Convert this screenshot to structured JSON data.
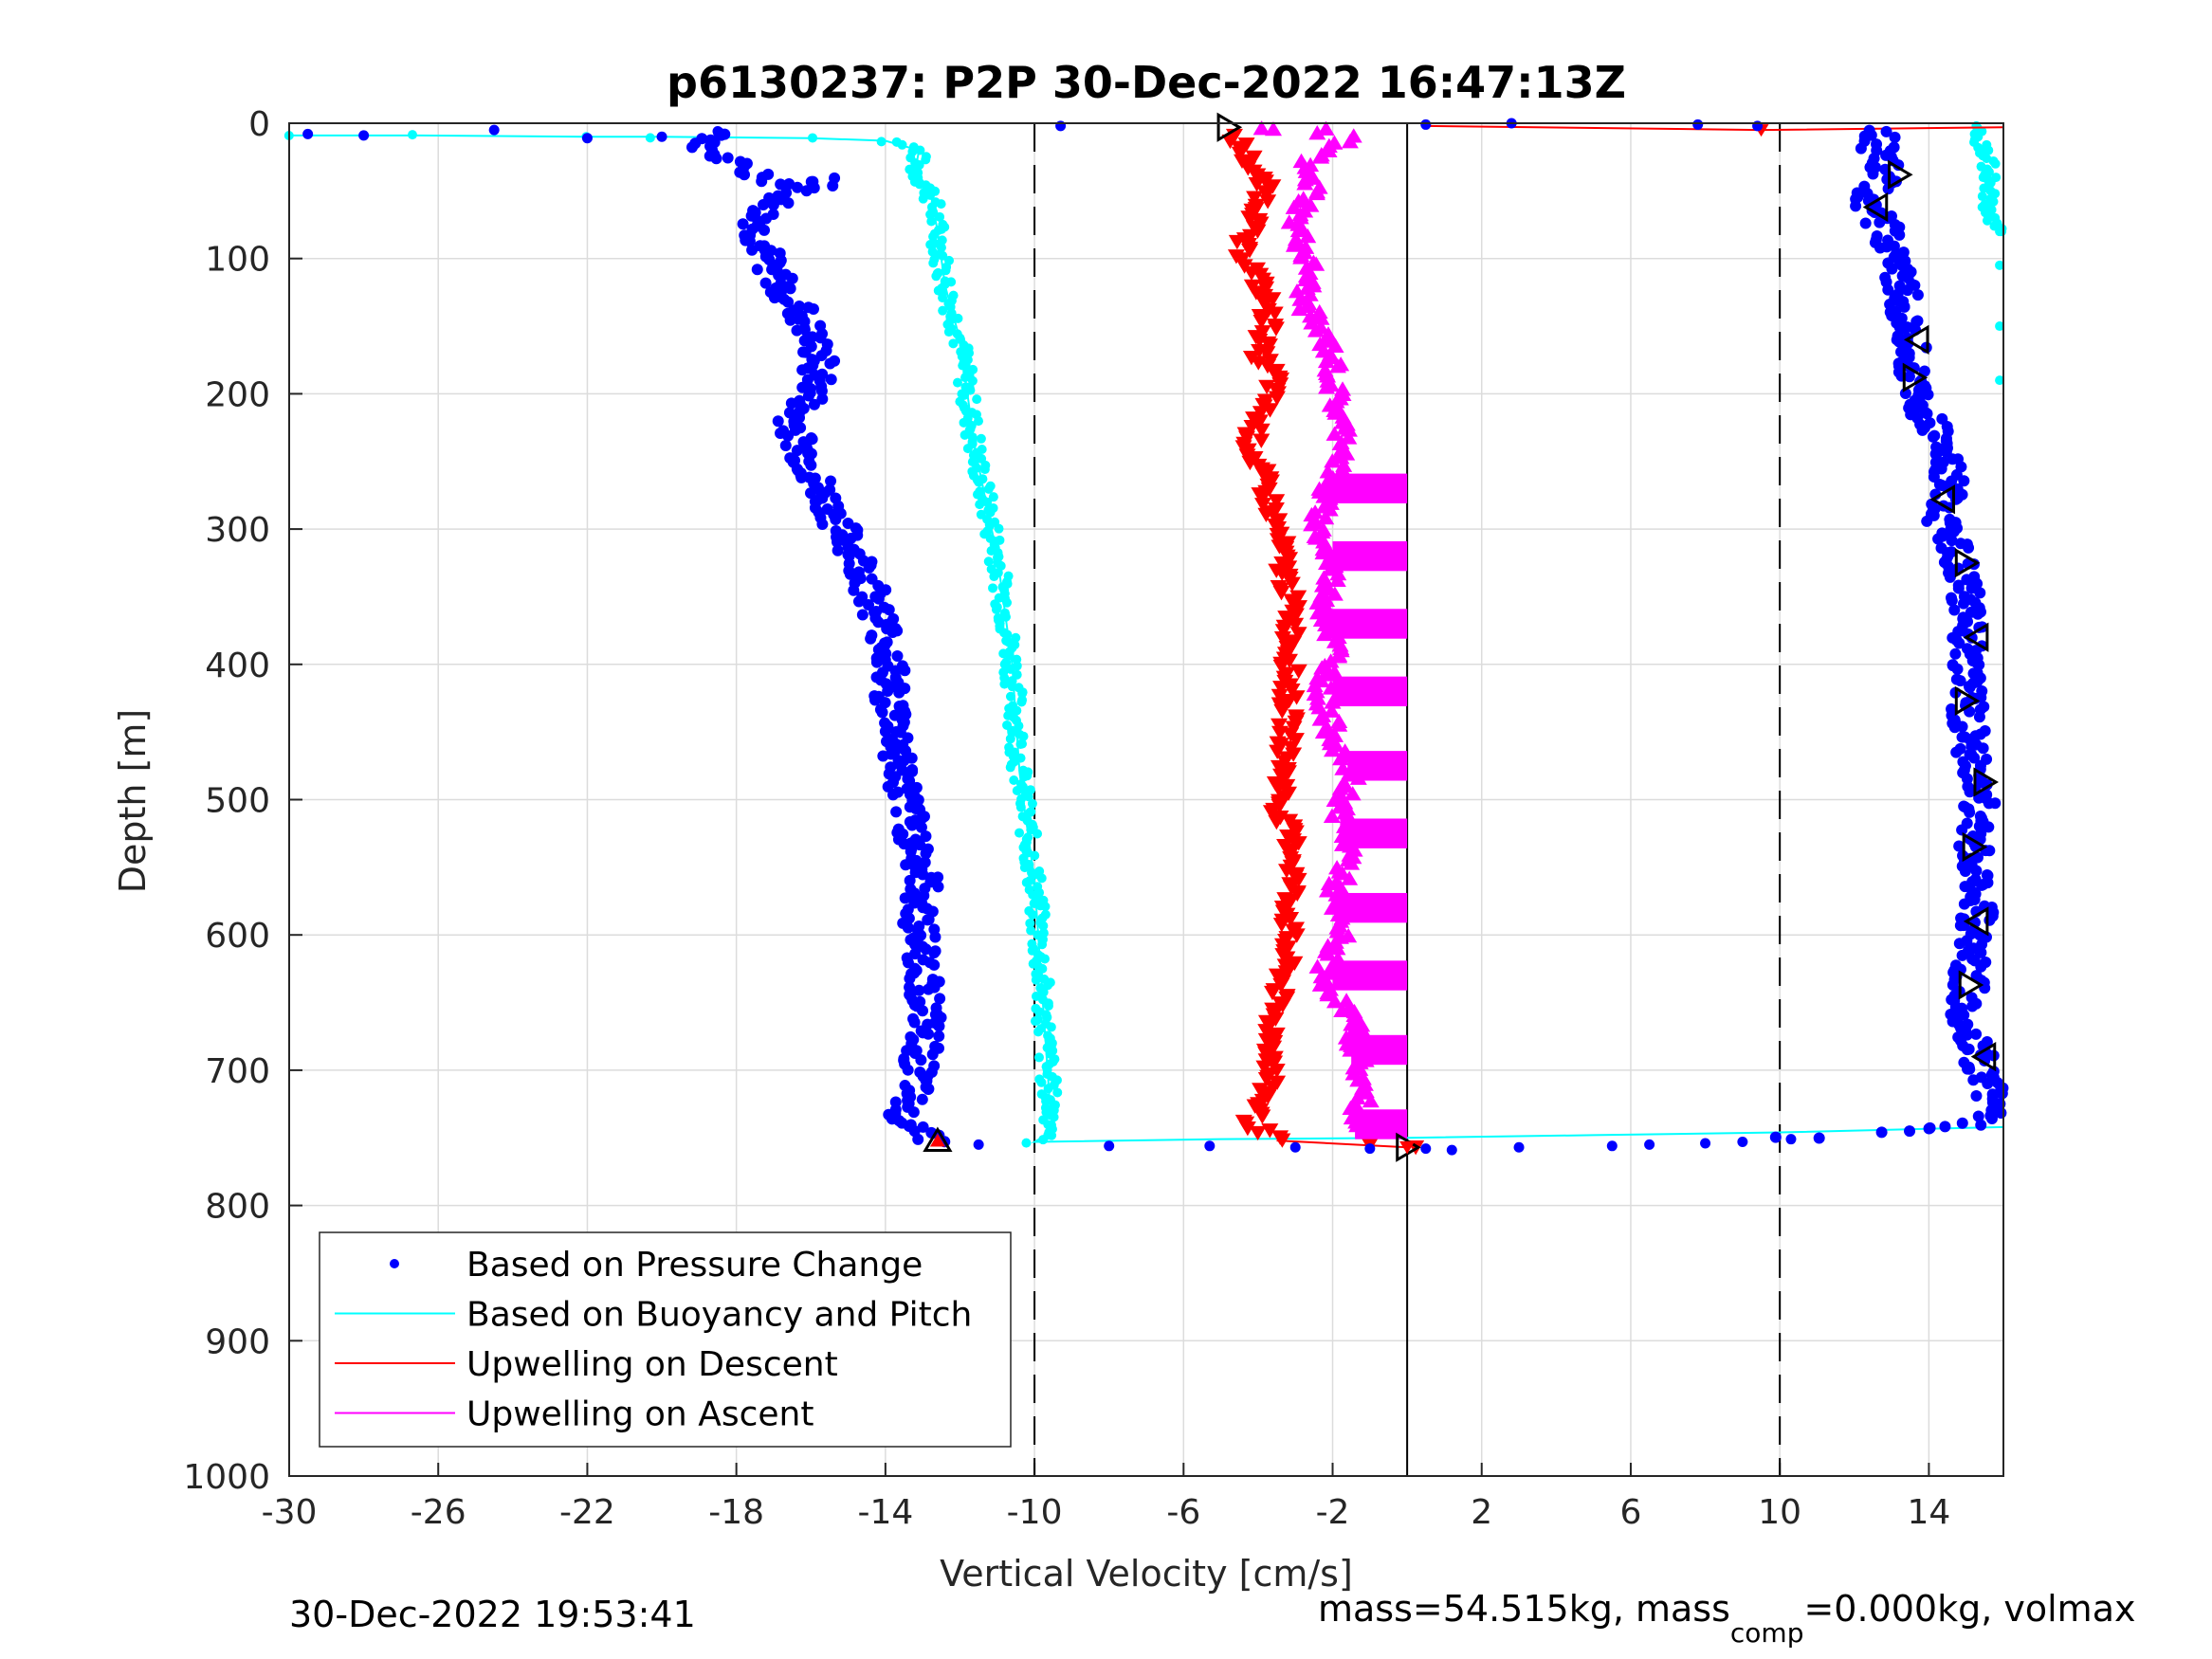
{
  "chart_data": {
    "type": "scatter",
    "title": "p6130237: P2P 30-Dec-2022 16:47:13Z",
    "xlabel": "Vertical Velocity [cm/s]",
    "ylabel": "Depth [m]",
    "xlim": [
      -30,
      16
    ],
    "ylim": [
      0,
      1000
    ],
    "y_reversed": true,
    "grid": true,
    "x_ticks": [
      "-30",
      "-26",
      "-22",
      "-18",
      "-14",
      "-10",
      "-6",
      "-2",
      "2",
      "6",
      "10",
      "14"
    ],
    "x_tick_values": [
      -30,
      -26,
      -22,
      -18,
      -14,
      -10,
      -6,
      -2,
      2,
      6,
      10,
      14
    ],
    "y_ticks": [
      "0",
      "100",
      "200",
      "300",
      "400",
      "500",
      "600",
      "700",
      "800",
      "900",
      "1000"
    ],
    "y_tick_values": [
      0,
      100,
      200,
      300,
      400,
      500,
      600,
      700,
      800,
      900,
      1000
    ],
    "reference_lines": [
      {
        "x": -10,
        "style": "dashed"
      },
      {
        "x": 0,
        "style": "solid"
      },
      {
        "x": 10,
        "style": "dashed"
      }
    ],
    "legend_placement": "bottom-left",
    "series": [
      {
        "name": "Based on Pressure Change",
        "marker": "dot",
        "color": "#0000ff",
        "descent": [
          [
            -29.5,
            8
          ],
          [
            -28,
            9
          ],
          [
            -24.5,
            5
          ],
          [
            -22,
            11
          ],
          [
            -20,
            10
          ],
          [
            -18.5,
            6
          ],
          [
            -18.8,
            15
          ],
          [
            -18.5,
            25
          ],
          [
            -17.8,
            35
          ],
          [
            -16.5,
            45
          ],
          [
            -15.5,
            42
          ],
          [
            -16.8,
            55
          ],
          [
            -17.3,
            65
          ],
          [
            -17.5,
            80
          ],
          [
            -17.2,
            100
          ],
          [
            -16.8,
            120
          ],
          [
            -16.3,
            140
          ],
          [
            -16,
            160
          ],
          [
            -15.8,
            175
          ],
          [
            -15.8,
            190
          ],
          [
            -16.5,
            220
          ],
          [
            -16.2,
            245
          ],
          [
            -15.8,
            270
          ],
          [
            -15.2,
            300
          ],
          [
            -14.6,
            330
          ],
          [
            -14.2,
            360
          ],
          [
            -13.9,
            390
          ],
          [
            -13.9,
            420
          ],
          [
            -13.7,
            450
          ],
          [
            -13.6,
            480
          ],
          [
            -13.5,
            500
          ],
          [
            -13.2,
            530
          ],
          [
            -13.0,
            560
          ],
          [
            -13.1,
            590
          ],
          [
            -13.0,
            620
          ],
          [
            -12.9,
            650
          ],
          [
            -13.0,
            680
          ],
          [
            -13.2,
            710
          ],
          [
            -13.6,
            730
          ],
          [
            -13.0,
            745
          ],
          [
            -12.6,
            752
          ]
        ],
        "ascent": [
          [
            -11.5,
            755
          ],
          [
            -8,
            756
          ],
          [
            -5.3,
            756
          ],
          [
            -3,
            757
          ],
          [
            -1,
            758
          ],
          [
            0.5,
            758
          ],
          [
            1.2,
            759
          ],
          [
            3,
            757
          ],
          [
            5.5,
            756
          ],
          [
            6.5,
            755
          ],
          [
            8,
            754
          ],
          [
            9,
            753
          ],
          [
            10.3,
            751
          ],
          [
            11.5,
            749
          ],
          [
            12.5,
            747
          ],
          [
            14,
            744
          ],
          [
            15,
            740
          ],
          [
            15.6,
            735
          ],
          [
            15.7,
            720
          ],
          [
            15.4,
            700
          ],
          [
            15.0,
            660
          ],
          [
            15.1,
            620
          ],
          [
            15.3,
            580
          ],
          [
            15.2,
            540
          ],
          [
            15.4,
            500
          ],
          [
            15.1,
            460
          ],
          [
            15.0,
            420
          ],
          [
            15.0,
            380
          ],
          [
            15.0,
            350
          ],
          [
            14.7,
            320
          ],
          [
            14.3,
            290
          ],
          [
            14.6,
            260
          ],
          [
            14.2,
            230
          ],
          [
            13.8,
            210
          ],
          [
            13.5,
            190
          ],
          [
            13.7,
            170
          ],
          [
            13.4,
            140
          ],
          [
            13.2,
            110
          ],
          [
            13.0,
            90
          ],
          [
            12.7,
            70
          ],
          [
            12.3,
            55
          ],
          [
            12.9,
            40
          ],
          [
            12.6,
            20
          ],
          [
            12.7,
            5
          ],
          [
            9.4,
            2
          ],
          [
            7.8,
            1
          ],
          [
            2.8,
            0
          ],
          [
            0.5,
            1
          ],
          [
            -9.3,
            2
          ]
        ]
      },
      {
        "name": "Based on Buoyancy and Pitch",
        "marker": "line",
        "color": "#00ffff",
        "descent": [
          [
            -30,
            9
          ],
          [
            -26.5,
            9
          ],
          [
            -22,
            10
          ],
          [
            -20.1,
            10
          ],
          [
            -16,
            11
          ],
          [
            -14,
            13
          ],
          [
            -13.1,
            20
          ],
          [
            -13.2,
            35
          ],
          [
            -12.8,
            50
          ],
          [
            -12.6,
            80
          ],
          [
            -12.4,
            120
          ],
          [
            -12.0,
            160
          ],
          [
            -11.8,
            200
          ],
          [
            -11.6,
            240
          ],
          [
            -11.3,
            280
          ],
          [
            -11.0,
            320
          ],
          [
            -10.8,
            360
          ],
          [
            -10.6,
            400
          ],
          [
            -10.5,
            440
          ],
          [
            -10.4,
            480
          ],
          [
            -10.2,
            520
          ],
          [
            -10.0,
            560
          ],
          [
            -9.9,
            600
          ],
          [
            -9.8,
            640
          ],
          [
            -9.7,
            680
          ],
          [
            -9.6,
            720
          ],
          [
            -9.5,
            745
          ],
          [
            -10,
            753
          ]
        ],
        "ascent": [
          [
            -10,
            753
          ],
          [
            -5,
            751
          ],
          [
            0,
            750
          ],
          [
            5,
            748
          ],
          [
            10,
            746
          ],
          [
            16,
            742
          ]
        ],
        "extra_points": [
          [
            15.3,
            5
          ],
          [
            15.6,
            20
          ],
          [
            15.8,
            40
          ],
          [
            15.5,
            60
          ],
          [
            15.9,
            80
          ],
          [
            15.9,
            105
          ],
          [
            15.9,
            150
          ],
          [
            15.9,
            190
          ]
        ]
      },
      {
        "name": "Upwelling on Descent",
        "marker": "triangle-down",
        "color": "#ff0000",
        "points": [
          [
            -4.6,
            10
          ],
          [
            -4.2,
            30
          ],
          [
            -3.8,
            50
          ],
          [
            -4.0,
            70
          ],
          [
            -4.5,
            90
          ],
          [
            -4.1,
            110
          ],
          [
            -3.8,
            130
          ],
          [
            -3.7,
            150
          ],
          [
            -4.0,
            170
          ],
          [
            -3.5,
            190
          ],
          [
            -4.0,
            220
          ],
          [
            -4.2,
            240
          ],
          [
            -3.8,
            270
          ],
          [
            -3.5,
            300
          ],
          [
            -3.3,
            330
          ],
          [
            -3.1,
            360
          ],
          [
            -3.1,
            390
          ],
          [
            -3.2,
            420
          ],
          [
            -3.2,
            450
          ],
          [
            -3.3,
            480
          ],
          [
            -3.4,
            510
          ],
          [
            -3.0,
            540
          ],
          [
            -3.1,
            570
          ],
          [
            -3.2,
            600
          ],
          [
            -3.3,
            630
          ],
          [
            -3.6,
            660
          ],
          [
            -3.6,
            690
          ],
          [
            -3.8,
            720
          ],
          [
            -4.2,
            740
          ],
          [
            -3.5,
            752
          ],
          [
            -1,
            755
          ],
          [
            0,
            757
          ]
        ],
        "surface_line": [
          [
            0.5,
            2
          ],
          [
            9.5,
            5
          ],
          [
            16,
            3
          ]
        ]
      },
      {
        "name": "Upwelling on Ascent",
        "marker": "triangle-up",
        "color": "#ff00ff",
        "points": [
          [
            -1.6,
            10
          ],
          [
            -2.8,
            30
          ],
          [
            -2.5,
            50
          ],
          [
            -3.0,
            70
          ],
          [
            -2.8,
            90
          ],
          [
            -2.6,
            110
          ],
          [
            -2.8,
            130
          ],
          [
            -2.4,
            150
          ],
          [
            -2.0,
            170
          ],
          [
            -2.0,
            190
          ],
          [
            -1.8,
            220
          ],
          [
            -1.6,
            240
          ],
          [
            -2.2,
            270
          ],
          [
            -2.4,
            300
          ],
          [
            -2.0,
            330
          ],
          [
            -2.2,
            360
          ],
          [
            -1.9,
            390
          ],
          [
            -2.3,
            420
          ],
          [
            -2.0,
            450
          ],
          [
            -1.5,
            480
          ],
          [
            -1.8,
            510
          ],
          [
            -1.5,
            540
          ],
          [
            -2.0,
            570
          ],
          [
            -1.8,
            600
          ],
          [
            -2.3,
            630
          ],
          [
            -1.5,
            660
          ],
          [
            -1.3,
            690
          ],
          [
            -1.2,
            720
          ],
          [
            -1.4,
            740
          ]
        ],
        "bars": [
          {
            "y": 270,
            "x0": -2.2,
            "x1": 0
          },
          {
            "y": 320,
            "x0": -2.0,
            "x1": 0
          },
          {
            "y": 370,
            "x0": -2.2,
            "x1": 0
          },
          {
            "y": 420,
            "x0": -2.0,
            "x1": 0
          },
          {
            "y": 475,
            "x0": -1.6,
            "x1": 0
          },
          {
            "y": 525,
            "x0": -1.8,
            "x1": 0
          },
          {
            "y": 580,
            "x0": -1.8,
            "x1": 0
          },
          {
            "y": 630,
            "x0": -2.0,
            "x1": 0
          },
          {
            "y": 685,
            "x0": -1.5,
            "x1": 0
          },
          {
            "y": 740,
            "x0": -1.4,
            "x1": 0
          }
        ]
      },
      {
        "name": "",
        "marker": "triangle-outline",
        "color": "#000000",
        "points": [
          [
            -4.8,
            3,
            "right"
          ],
          [
            13.2,
            38,
            "right"
          ],
          [
            12.6,
            62,
            "left"
          ],
          [
            13.7,
            160,
            "left"
          ],
          [
            13.6,
            188,
            "right"
          ],
          [
            14.4,
            278,
            "left"
          ],
          [
            15.0,
            325,
            "right"
          ],
          [
            15.3,
            380,
            "left"
          ],
          [
            15.0,
            427,
            "right"
          ],
          [
            15.5,
            487,
            "right"
          ],
          [
            15.2,
            535,
            "right"
          ],
          [
            15.3,
            590,
            "left"
          ],
          [
            15.1,
            637,
            "right"
          ],
          [
            15.5,
            690,
            "left"
          ],
          [
            -12.6,
            752,
            "up"
          ],
          [
            0,
            757,
            "right"
          ]
        ]
      }
    ]
  },
  "footer": {
    "timestamp": "30-Dec-2022 19:53:41",
    "mass_prefix": "mass=54.515kg, mass",
    "mass_sub": "comp",
    "mass_suffix": "=0.000kg, volmax"
  }
}
